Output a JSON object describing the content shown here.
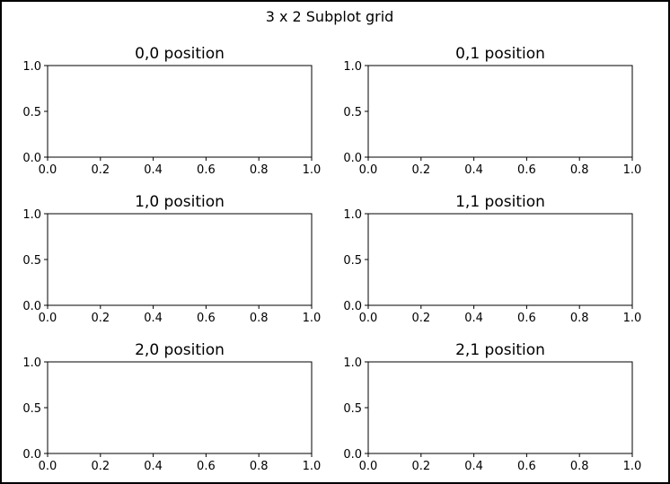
{
  "chart_data": {
    "type": "subplot_grid",
    "title": "3 x 2 Subplot grid",
    "rows": 3,
    "cols": 2,
    "axes": [
      {
        "title": "0,0 position",
        "xlim": [
          0.0,
          1.0
        ],
        "ylim": [
          0.0,
          1.0
        ]
      },
      {
        "title": "0,1 position",
        "xlim": [
          0.0,
          1.0
        ],
        "ylim": [
          0.0,
          1.0
        ]
      },
      {
        "title": "1,0 position",
        "xlim": [
          0.0,
          1.0
        ],
        "ylim": [
          0.0,
          1.0
        ]
      },
      {
        "title": "1,1 position",
        "xlim": [
          0.0,
          1.0
        ],
        "ylim": [
          0.0,
          1.0
        ]
      },
      {
        "title": "2,0 position",
        "xlim": [
          0.0,
          1.0
        ],
        "ylim": [
          0.0,
          1.0
        ]
      },
      {
        "title": "2,1 position",
        "xlim": [
          0.0,
          1.0
        ],
        "ylim": [
          0.0,
          1.0
        ]
      }
    ],
    "x_ticks": [
      "0.0",
      "0.2",
      "0.4",
      "0.6",
      "0.8",
      "1.0"
    ],
    "y_ticks": [
      "0.0",
      "0.5",
      "1.0"
    ],
    "grid": false,
    "series": []
  }
}
